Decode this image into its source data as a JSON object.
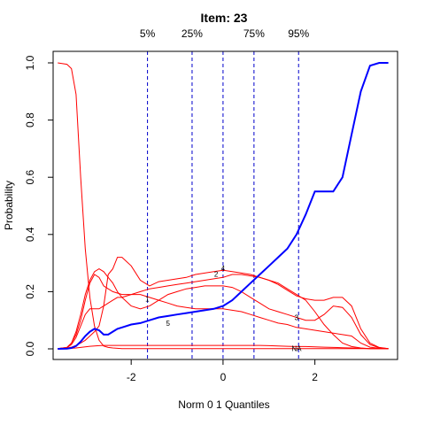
{
  "chart_data": {
    "type": "line",
    "title": "Item:  23",
    "xlabel": "Norm 0 1 Quantiles",
    "ylabel": "Probability",
    "xlim": [
      -3.7,
      3.8
    ],
    "ylim": [
      0,
      1.05
    ],
    "xticks": [
      -2,
      0,
      2
    ],
    "yticks": [
      0.0,
      0.2,
      0.4,
      0.6,
      0.8,
      1.0
    ],
    "ytick_labels": [
      "0.0",
      "0.2",
      "0.4",
      "0.6",
      "0.8",
      "1.0"
    ],
    "grid": false,
    "quantile_lines": [
      {
        "label": "5%",
        "x": -1.645
      },
      {
        "label": "25%",
        "x": -0.674
      },
      {
        "label": "",
        "x": 0.0
      },
      {
        "label": "75%",
        "x": 0.674
      },
      {
        "label": "95%",
        "x": 1.645
      }
    ],
    "x": [
      -3.6,
      -3.4,
      -3.3,
      -3.2,
      -3.1,
      -3.0,
      -2.9,
      -2.8,
      -2.7,
      -2.6,
      -2.5,
      -2.4,
      -2.3,
      -2.2,
      -2.0,
      -1.8,
      -1.6,
      -1.4,
      -1.2,
      -1.0,
      -0.8,
      -0.6,
      -0.4,
      -0.2,
      0.0,
      0.2,
      0.4,
      0.6,
      0.8,
      1.0,
      1.2,
      1.4,
      1.6,
      1.8,
      2.0,
      2.2,
      2.4,
      2.6,
      2.8,
      3.0,
      3.2,
      3.4,
      3.6
    ],
    "series": [
      {
        "name": "",
        "color": "#ff0000",
        "values": [
          1.0,
          0.995,
          0.98,
          0.89,
          0.6,
          0.35,
          0.18,
          0.08,
          0.03,
          0.01,
          0.005,
          0.003,
          0.002,
          0.001,
          0.001,
          0.001,
          0.001,
          0.001,
          0.001,
          0.001,
          0.001,
          0.001,
          0.001,
          0.001,
          0.001,
          0.001,
          0.001,
          0.001,
          0.001,
          0.001,
          0.001,
          0.001,
          0.001,
          0.001,
          0.001,
          0.001,
          0.001,
          0.001,
          0.001,
          0.001,
          0.001,
          0.001,
          0.001
        ]
      },
      {
        "name": "",
        "color": "#ff0000",
        "values": [
          0.001,
          0.003,
          0.006,
          0.012,
          0.02,
          0.03,
          0.045,
          0.06,
          0.08,
          0.15,
          0.26,
          0.28,
          0.32,
          0.32,
          0.29,
          0.24,
          0.22,
          0.235,
          0.24,
          0.245,
          0.25,
          0.26,
          0.265,
          0.27,
          0.275,
          0.27,
          0.265,
          0.26,
          0.25,
          0.24,
          0.23,
          0.21,
          0.19,
          0.17,
          0.13,
          0.085,
          0.05,
          0.02,
          0.008,
          0.003,
          0.001,
          0.001,
          0.001
        ]
      },
      {
        "name": "",
        "color": "#ff0000",
        "values": [
          0.001,
          0.005,
          0.02,
          0.05,
          0.1,
          0.17,
          0.23,
          0.26,
          0.25,
          0.22,
          0.21,
          0.2,
          0.195,
          0.19,
          0.19,
          0.2,
          0.21,
          0.215,
          0.22,
          0.225,
          0.23,
          0.235,
          0.24,
          0.245,
          0.25,
          0.26,
          0.26,
          0.255,
          0.25,
          0.24,
          0.225,
          0.205,
          0.185,
          0.175,
          0.17,
          0.17,
          0.18,
          0.18,
          0.15,
          0.07,
          0.02,
          0.005,
          0.001
        ]
      },
      {
        "name": "",
        "color": "#ff0000",
        "values": [
          0.001,
          0.005,
          0.02,
          0.06,
          0.12,
          0.19,
          0.24,
          0.27,
          0.28,
          0.27,
          0.25,
          0.23,
          0.2,
          0.18,
          0.15,
          0.14,
          0.15,
          0.17,
          0.19,
          0.2,
          0.21,
          0.215,
          0.22,
          0.22,
          0.22,
          0.215,
          0.2,
          0.18,
          0.16,
          0.14,
          0.13,
          0.12,
          0.11,
          0.1,
          0.1,
          0.12,
          0.15,
          0.145,
          0.11,
          0.05,
          0.015,
          0.004,
          0.001
        ]
      },
      {
        "name": "",
        "color": "#ff0000",
        "values": [
          0.001,
          0.004,
          0.015,
          0.04,
          0.08,
          0.12,
          0.14,
          0.14,
          0.14,
          0.15,
          0.16,
          0.17,
          0.18,
          0.18,
          0.19,
          0.19,
          0.18,
          0.17,
          0.16,
          0.15,
          0.145,
          0.14,
          0.14,
          0.14,
          0.14,
          0.135,
          0.13,
          0.12,
          0.11,
          0.1,
          0.09,
          0.085,
          0.075,
          0.07,
          0.065,
          0.06,
          0.055,
          0.05,
          0.045,
          0.02,
          0.006,
          0.002,
          0.001
        ]
      },
      {
        "name": "",
        "color": "#ff0000",
        "values": [
          0.001,
          0.001,
          0.002,
          0.003,
          0.005,
          0.007,
          0.009,
          0.01,
          0.011,
          0.012,
          0.012,
          0.012,
          0.012,
          0.012,
          0.012,
          0.012,
          0.012,
          0.012,
          0.012,
          0.012,
          0.012,
          0.012,
          0.012,
          0.012,
          0.012,
          0.012,
          0.012,
          0.012,
          0.012,
          0.011,
          0.01,
          0.009,
          0.008,
          0.008,
          0.007,
          0.006,
          0.005,
          0.004,
          0.003,
          0.002,
          0.001,
          0.001,
          0.001
        ]
      },
      {
        "name": "",
        "color": "#0000ff",
        "values": [
          0.0,
          0.001,
          0.003,
          0.01,
          0.025,
          0.045,
          0.06,
          0.07,
          0.065,
          0.05,
          0.05,
          0.06,
          0.07,
          0.075,
          0.085,
          0.09,
          0.1,
          0.11,
          0.115,
          0.12,
          0.125,
          0.13,
          0.135,
          0.14,
          0.15,
          0.17,
          0.2,
          0.23,
          0.26,
          0.29,
          0.32,
          0.35,
          0.4,
          0.47,
          0.55,
          0.55,
          0.55,
          0.6,
          0.75,
          0.9,
          0.99,
          1.0,
          1.0
        ]
      }
    ],
    "curve_labels": [
      {
        "text": "1",
        "x": -1.65,
        "y": 0.175
      },
      {
        "text": "2",
        "x": -0.15,
        "y": 0.262
      },
      {
        "text": "3",
        "x": 1.6,
        "y": 0.11
      },
      {
        "text": "4",
        "x": 0.0,
        "y": 0.282
      },
      {
        "text": "5",
        "x": -1.2,
        "y": 0.09
      },
      {
        "text": "NA",
        "x": 1.6,
        "y": 0.002
      }
    ]
  }
}
